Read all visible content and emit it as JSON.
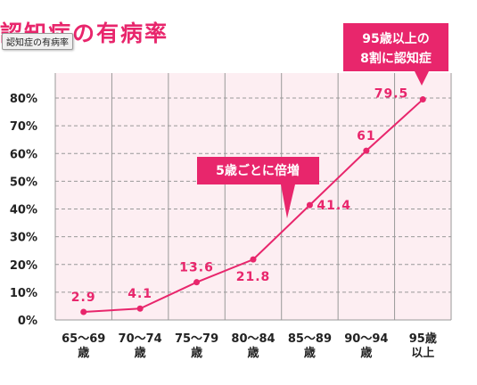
{
  "title": "認知症の有病率",
  "tooltip": "認知症の有病率",
  "colors": {
    "accent": "#e8266c",
    "plot_bg": "#fdeef2",
    "grid": "#999999"
  },
  "callouts": {
    "top_line1": "95歳以上の",
    "top_line2": "8割に認知症",
    "mid": "5歳ごとに倍増"
  },
  "chart_data": {
    "type": "line",
    "title": "認知症の有病率",
    "categories": [
      "65〜69歳",
      "70〜74歳",
      "75〜79歳",
      "80〜84歳",
      "85〜89歳",
      "90〜94歳",
      "95歳以上"
    ],
    "category_lines": [
      [
        "65〜69",
        "歳"
      ],
      [
        "70〜74",
        "歳"
      ],
      [
        "75〜79",
        "歳"
      ],
      [
        "80〜84",
        "歳"
      ],
      [
        "85〜89",
        "歳"
      ],
      [
        "90〜94",
        "歳"
      ],
      [
        "95歳",
        "以上"
      ]
    ],
    "values": [
      2.9,
      4.1,
      13.6,
      21.8,
      41.4,
      61,
      79.5
    ],
    "data_labels": [
      "2.9",
      "4.1",
      "13.6",
      "21.8",
      "41.4",
      "61",
      "79.5"
    ],
    "yticks": [
      "0%",
      "10%",
      "20%",
      "30%",
      "40%",
      "50%",
      "60%",
      "70%",
      "80%"
    ],
    "ylim": [
      0,
      80
    ],
    "grid": true,
    "xlabel": "",
    "ylabel": ""
  }
}
